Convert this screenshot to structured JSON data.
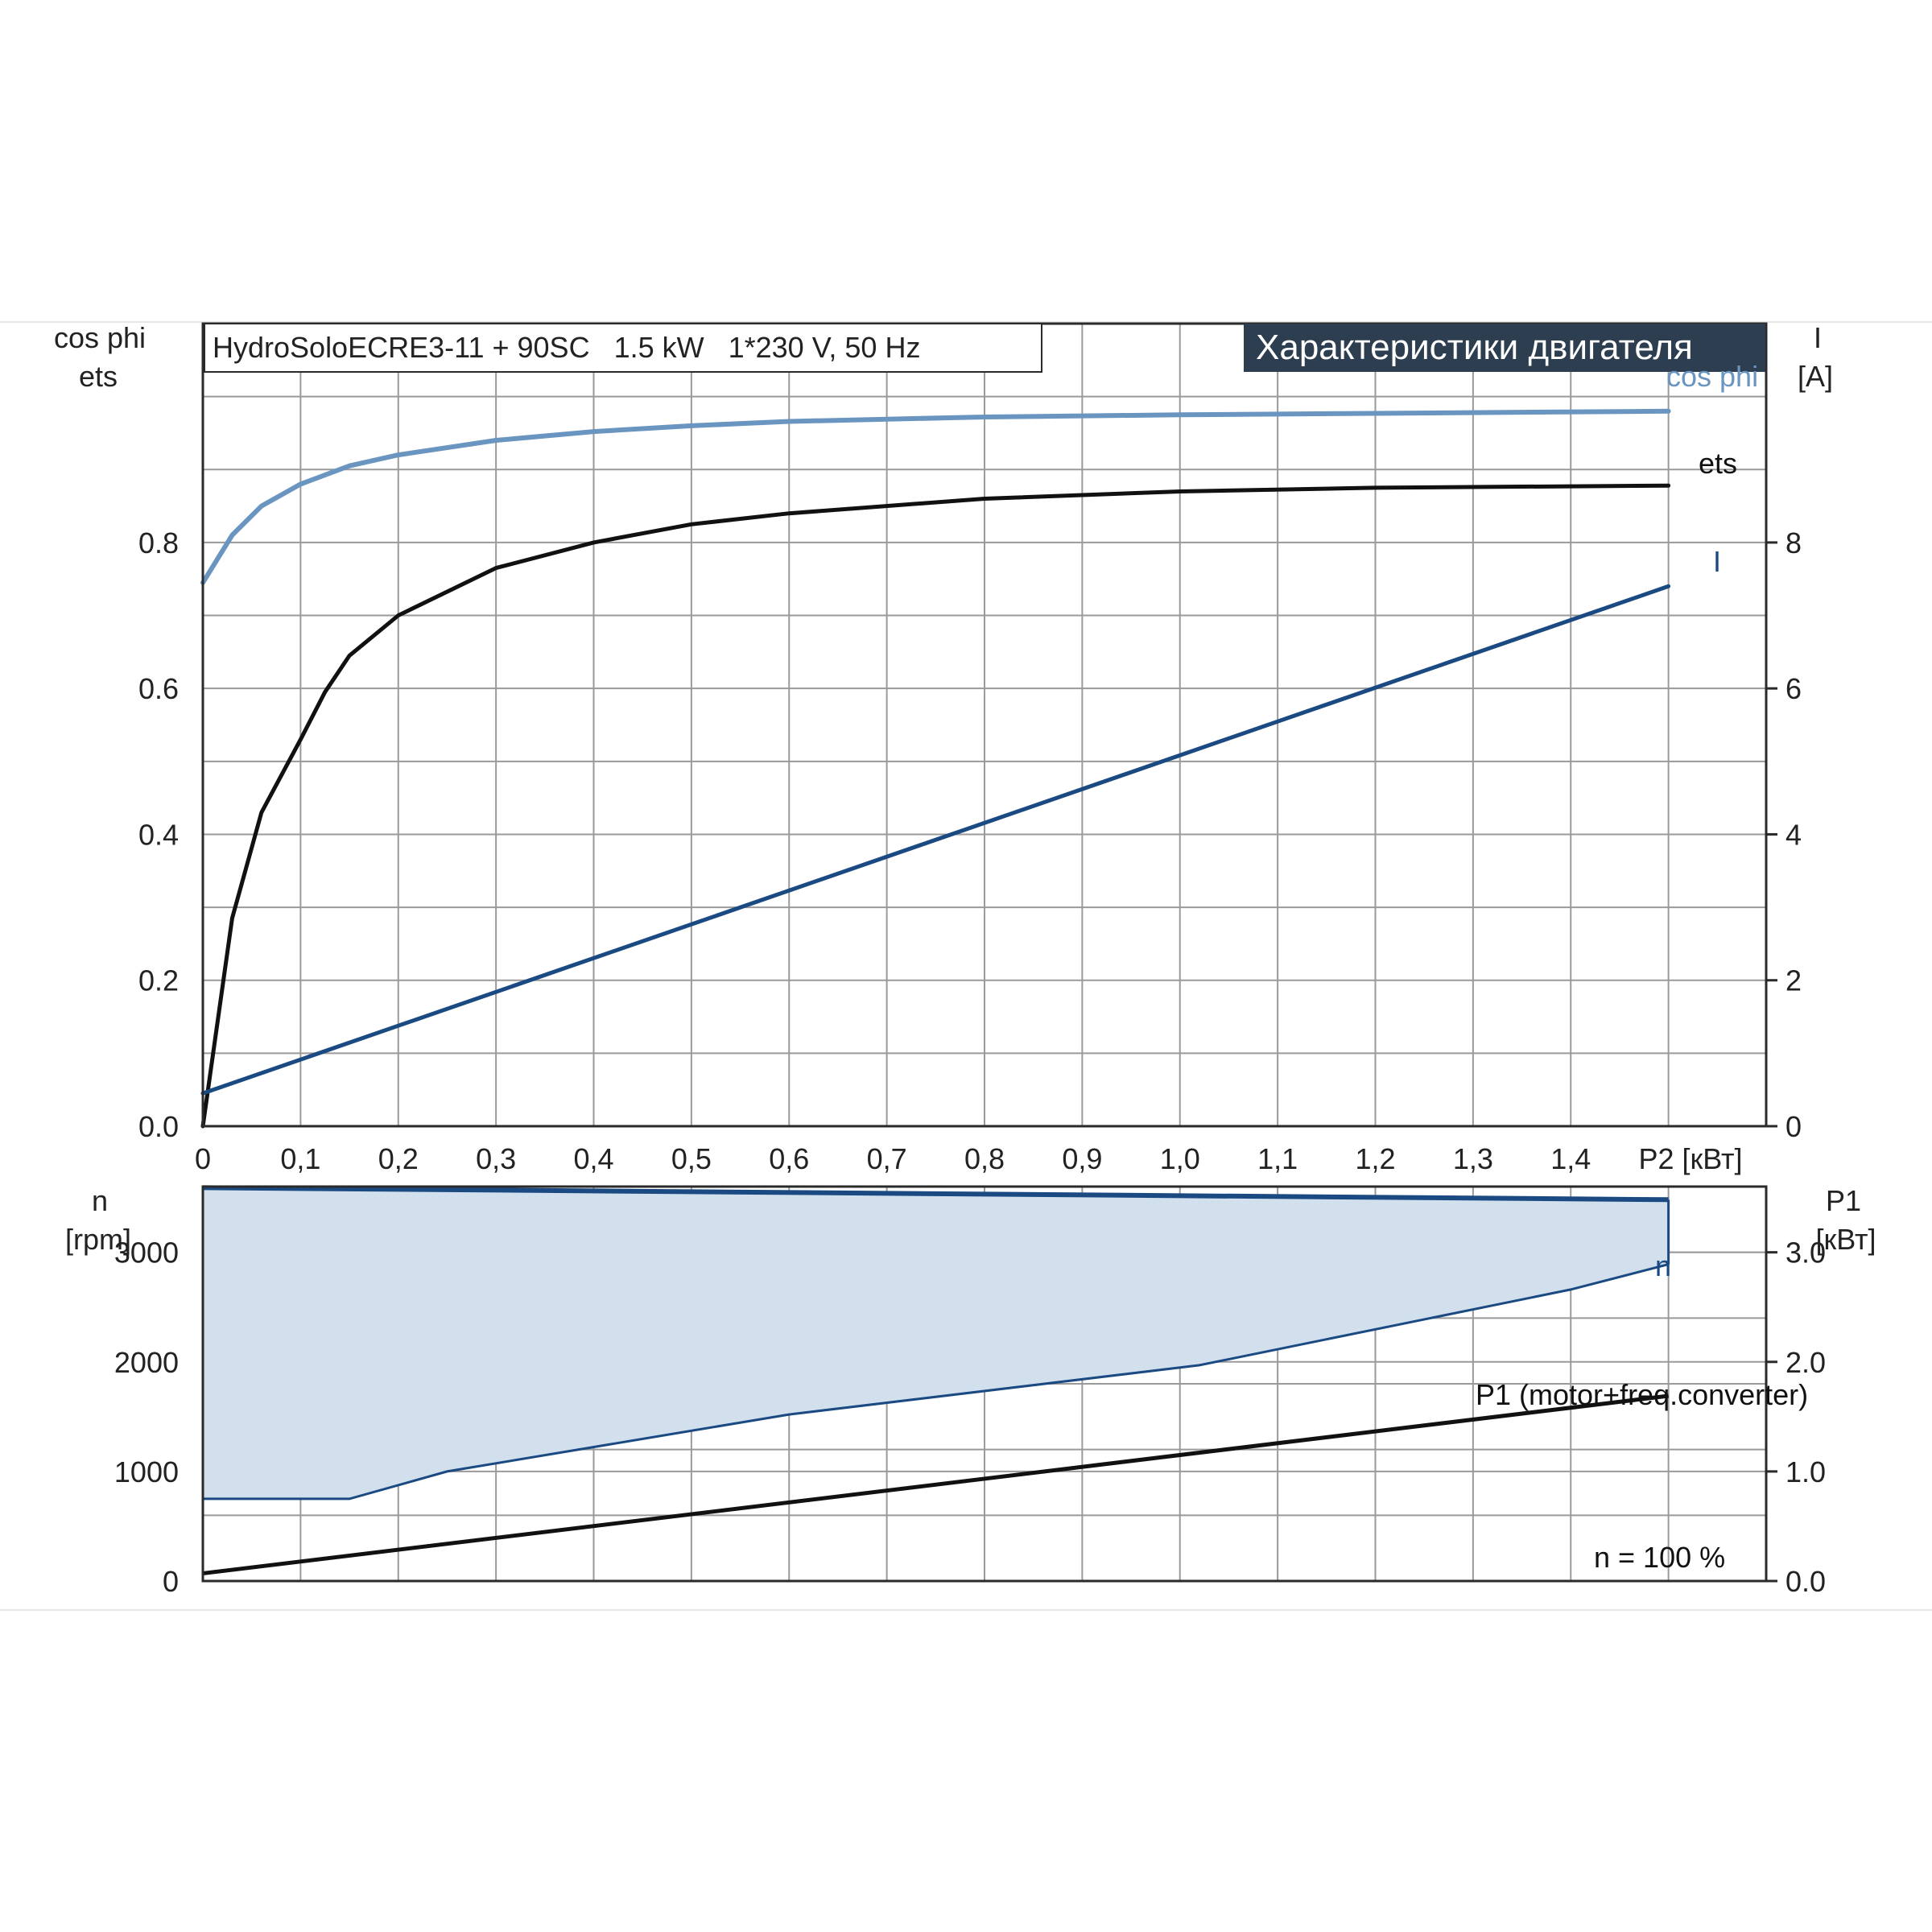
{
  "header": {
    "model_text": "HydroSoloECRE3-11 + 90SC   1.5 kW   1*230 V, 50 Hz",
    "section_title": "Характеристики двигателя"
  },
  "colors": {
    "cos_phi": "#6a95c0",
    "ets": "#111111",
    "current": "#1b4a82",
    "speed": "#1b4a82",
    "speed_fill": "#d2e0ee",
    "p1": "#111111",
    "title_bg": "#2c3e50",
    "grid": "#9a9a9a"
  },
  "labels": {
    "left_top_1": "cos phi",
    "left_top_2": "ets",
    "right_top_1": "I",
    "right_top_2": "[A]",
    "x_axis": "P2 [кВт]",
    "left_bottom_1": "n",
    "left_bottom_2": "[rpm]",
    "right_bottom_1": "P1",
    "right_bottom_2": "[кВт]",
    "speed_note": "n = 100 %",
    "curve_cos": "cos phi",
    "curve_ets": "ets",
    "curve_i": "I",
    "curve_n": "n",
    "curve_p1": "P1 (motor+freq.converter)"
  },
  "chart_data": [
    {
      "type": "line",
      "x_ticks": [
        "0",
        "0,1",
        "0,2",
        "0,3",
        "0,4",
        "0,5",
        "0,6",
        "0,7",
        "0,8",
        "0,9",
        "1,0",
        "1,1",
        "1,2",
        "1,3",
        "1,4"
      ],
      "xlabel": "P2 [кВт]",
      "xlim": [
        0,
        1.6
      ],
      "y_left_ticks": [
        "0.0",
        "0.2",
        "0.4",
        "0.6",
        "0.8"
      ],
      "y_left_label": "cos phi / ets",
      "ylim_left": [
        0,
        1.1
      ],
      "y_right_ticks": [
        "0",
        "2",
        "4",
        "6",
        "8"
      ],
      "y_right_label": "I [A]",
      "ylim_right": [
        0,
        11
      ],
      "grid": true,
      "series": [
        {
          "name": "cos phi",
          "axis": "left",
          "x": [
            0,
            0.03,
            0.06,
            0.1,
            0.15,
            0.2,
            0.3,
            0.4,
            0.5,
            0.6,
            0.8,
            1.0,
            1.2,
            1.5
          ],
          "y": [
            0.745,
            0.81,
            0.85,
            0.88,
            0.905,
            0.92,
            0.94,
            0.952,
            0.96,
            0.966,
            0.972,
            0.975,
            0.977,
            0.98
          ]
        },
        {
          "name": "ets",
          "axis": "left",
          "x": [
            0,
            0.03,
            0.06,
            0.1,
            0.125,
            0.15,
            0.2,
            0.3,
            0.4,
            0.5,
            0.6,
            0.8,
            1.0,
            1.2,
            1.5
          ],
          "y": [
            0,
            0.285,
            0.43,
            0.53,
            0.595,
            0.645,
            0.7,
            0.765,
            0.8,
            0.825,
            0.84,
            0.86,
            0.87,
            0.875,
            0.878
          ]
        },
        {
          "name": "I",
          "axis": "right",
          "x": [
            0,
            1.5
          ],
          "y": [
            0.45,
            7.4
          ]
        }
      ]
    },
    {
      "type": "area",
      "xlim": [
        0,
        1.6
      ],
      "y_left_ticks": [
        "0",
        "1000",
        "2000",
        "3000"
      ],
      "y_left_label": "n [rpm]",
      "ylim_left": [
        0,
        3600
      ],
      "y_right_ticks": [
        "0.0",
        "1.0",
        "2.0",
        "3.0"
      ],
      "y_right_label": "P1 [кВт]",
      "ylim_right": [
        0,
        3.6
      ],
      "grid": true,
      "series": [
        {
          "name": "n",
          "axis": "left",
          "x": [
            0,
            1.5
          ],
          "y": [
            3590,
            3480
          ]
        },
        {
          "name": "n",
          "axis": "left",
          "x": [
            0,
            0.15,
            0.25,
            0.6,
            1.02,
            1.4,
            1.5
          ],
          "y": [
            750,
            750,
            1000,
            1520,
            1970,
            2660,
            2890
          ]
        },
        {
          "name": "P1 (motor+freq.converter)",
          "axis": "right",
          "x": [
            0,
            1.5
          ],
          "y": [
            0.07,
            1.69
          ]
        }
      ]
    }
  ]
}
